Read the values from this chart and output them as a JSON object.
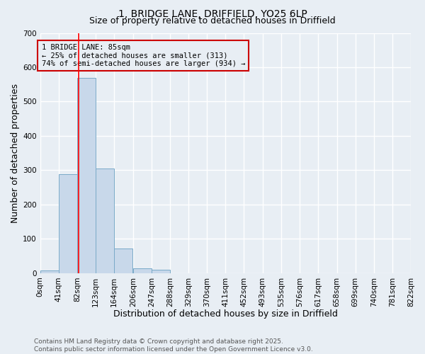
{
  "title1": "1, BRIDGE LANE, DRIFFIELD, YO25 6LP",
  "title2": "Size of property relative to detached houses in Driffield",
  "xlabel": "Distribution of detached houses by size in Driffield",
  "ylabel": "Number of detached properties",
  "bin_edges": [
    0,
    41,
    82,
    123,
    164,
    206,
    247,
    288,
    329,
    370,
    411,
    452,
    493,
    535,
    576,
    617,
    658,
    699,
    740,
    781,
    822
  ],
  "bar_heights": [
    8,
    289,
    570,
    305,
    71,
    15,
    10,
    0,
    0,
    0,
    0,
    0,
    0,
    0,
    0,
    0,
    0,
    0,
    0,
    0
  ],
  "bar_color": "#c8d8ea",
  "bar_edge_color": "#7aaac8",
  "red_line_x": 85,
  "annotation_text": "1 BRIDGE LANE: 85sqm\n← 25% of detached houses are smaller (313)\n74% of semi-detached houses are larger (934) →",
  "annotation_box_color": "#cc0000",
  "ylim": [
    0,
    700
  ],
  "yticks": [
    0,
    100,
    200,
    300,
    400,
    500,
    600,
    700
  ],
  "tick_labels": [
    "0sqm",
    "41sqm",
    "82sqm",
    "123sqm",
    "164sqm",
    "206sqm",
    "247sqm",
    "288sqm",
    "329sqm",
    "370sqm",
    "411sqm",
    "452sqm",
    "493sqm",
    "535sqm",
    "576sqm",
    "617sqm",
    "658sqm",
    "699sqm",
    "740sqm",
    "781sqm",
    "822sqm"
  ],
  "footer1": "Contains HM Land Registry data © Crown copyright and database right 2025.",
  "footer2": "Contains public sector information licensed under the Open Government Licence v3.0.",
  "bg_color": "#e8eef4",
  "grid_color": "#ffffff",
  "title_fontsize": 10,
  "subtitle_fontsize": 9,
  "axis_label_fontsize": 9,
  "tick_fontsize": 7.5,
  "footer_fontsize": 6.5
}
